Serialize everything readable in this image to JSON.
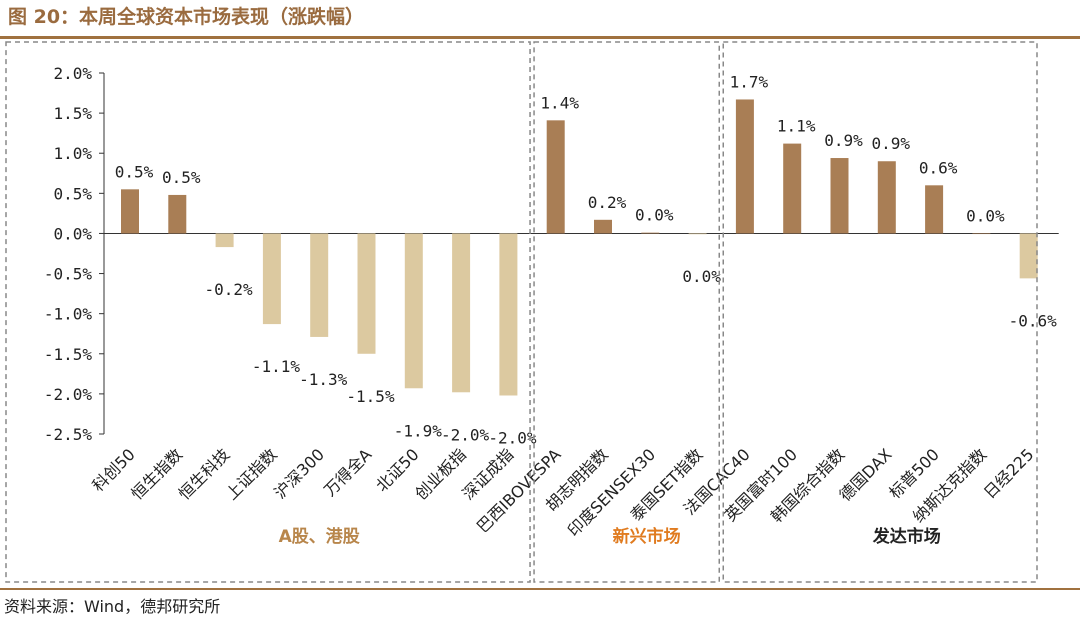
{
  "figure": {
    "title": "图 20：本周全球资本市场表现（涨跌幅）",
    "source": "资料来源：Wind，德邦研究所"
  },
  "colors": {
    "positive": "#a97e55",
    "negative": "#dcc9a0",
    "rule": "#a0713f",
    "title": "#9a6b3f",
    "group_emerging": "#e07b1f",
    "group_a": "#b8864b",
    "group_dev": "#222222"
  },
  "chart_data": {
    "type": "bar",
    "title": "本周全球资本市场表现（涨跌幅）",
    "xlabel": "",
    "ylabel": "",
    "ylim": [
      -2.5,
      2.0
    ],
    "yticks": [
      2.0,
      1.5,
      1.0,
      0.5,
      0.0,
      -0.5,
      -1.0,
      -1.5,
      -2.0,
      -2.5
    ],
    "ytick_labels": [
      "2.0%",
      "1.5%",
      "1.0%",
      "0.5%",
      "0.0%",
      "-0.5%",
      "-1.0%",
      "-1.5%",
      "-2.0%",
      "-2.5%"
    ],
    "categories": [
      "科创50",
      "恒生指数",
      "恒生科技",
      "上证指数",
      "沪深300",
      "万得全A",
      "北证50",
      "创业板指",
      "深证成指",
      "巴西IBOVESPA",
      "胡志明指数",
      "印度SENSEX30",
      "泰国SET指数",
      "法国CAC40",
      "英国富时100",
      "韩国综合指数",
      "德国DAX",
      "标普500",
      "纳斯达克指数",
      "日经225"
    ],
    "values": [
      0.55,
      0.48,
      -0.17,
      -1.13,
      -1.29,
      -1.5,
      -1.93,
      -1.98,
      -2.02,
      1.41,
      0.17,
      0.01,
      -0.01,
      1.67,
      1.12,
      0.94,
      0.9,
      0.6,
      0.0,
      -0.56
    ],
    "data_labels": [
      "0.5%",
      "0.5%",
      "-0.2%",
      "-1.1%",
      "-1.3%",
      "-1.5%",
      "-1.9%",
      "-2.0%",
      "-2.0%",
      "1.4%",
      "0.2%",
      "0.0%",
      "0.0%",
      "1.7%",
      "1.1%",
      "0.9%",
      "0.9%",
      "0.6%",
      "0.0%",
      "-0.6%"
    ],
    "groups": [
      {
        "name": "A股、港股",
        "start": 0,
        "end": 8
      },
      {
        "name": "新兴市场",
        "start": 9,
        "end": 12
      },
      {
        "name": "发达市场",
        "start": 13,
        "end": 19
      }
    ],
    "grid": false
  }
}
